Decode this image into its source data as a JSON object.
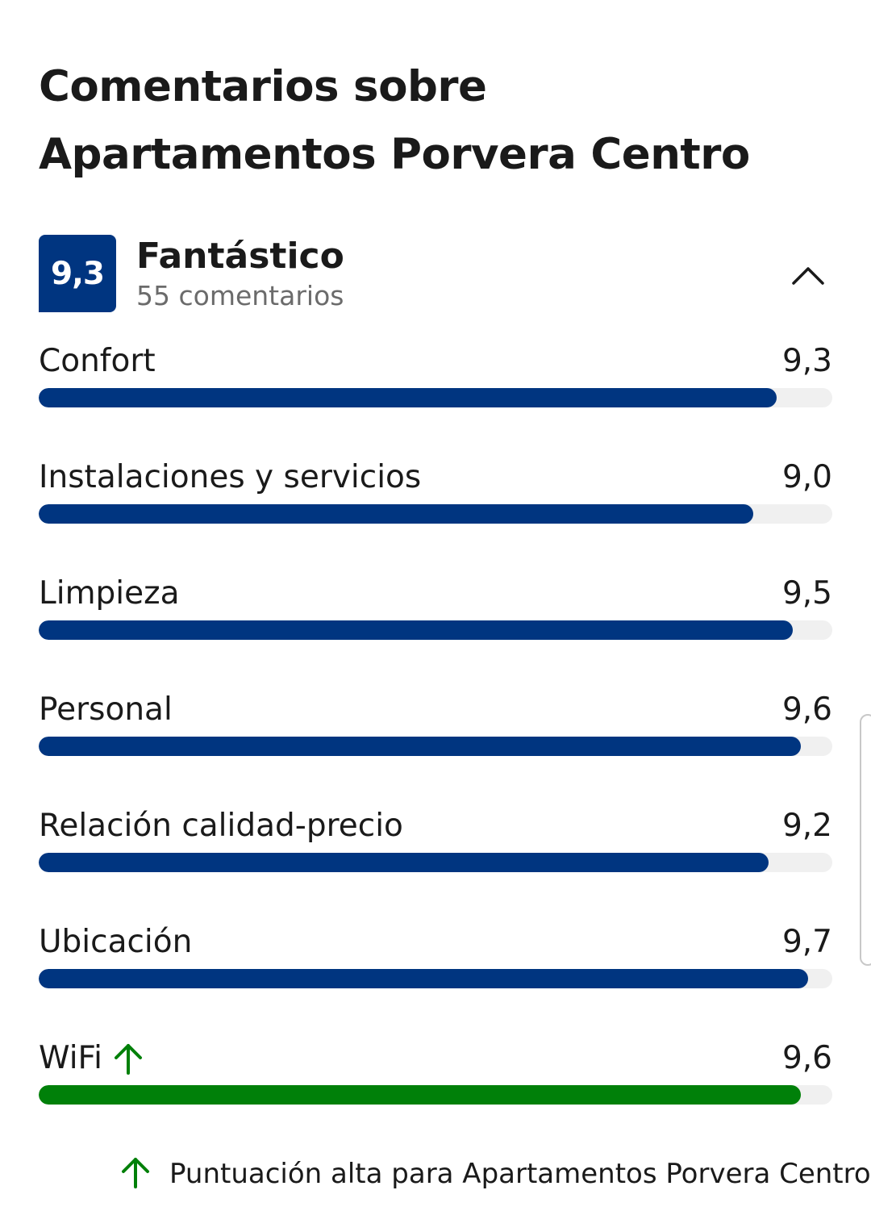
{
  "page": {
    "title": "Comentarios sobre Apartamentos Porvera Centro"
  },
  "summary": {
    "score": "9,3",
    "label": "Fantástico",
    "review_count": "55 comentarios",
    "toggle_icon": "chevron-up-icon",
    "badge_color": "#003580"
  },
  "categories": [
    {
      "label": "Confort",
      "value": "9,3",
      "score": 9.3,
      "color": "#003580",
      "trend": ""
    },
    {
      "label": "Instalaciones y servicios",
      "value": "9,0",
      "score": 9.0,
      "color": "#003580",
      "trend": ""
    },
    {
      "label": "Limpieza",
      "value": "9,5",
      "score": 9.5,
      "color": "#003580",
      "trend": ""
    },
    {
      "label": "Personal",
      "value": "9,6",
      "score": 9.6,
      "color": "#003580",
      "trend": ""
    },
    {
      "label": "Relación calidad-precio",
      "value": "9,2",
      "score": 9.2,
      "color": "#003580",
      "trend": ""
    },
    {
      "label": "Ubicación",
      "value": "9,7",
      "score": 9.7,
      "color": "#003580",
      "trend": ""
    },
    {
      "label": "WiFi",
      "value": "9,6",
      "score": 9.6,
      "color": "#008009",
      "trend": "arrow-up-icon"
    }
  ],
  "score_max": 10,
  "footnote": {
    "icon": "arrow-up-icon",
    "text": "Puntuación alta para Apartamentos Porvera Centro",
    "icon_color": "#008009"
  },
  "colors": {
    "primary": "#003580",
    "positive": "#008009",
    "track": "#f0f0f0"
  }
}
